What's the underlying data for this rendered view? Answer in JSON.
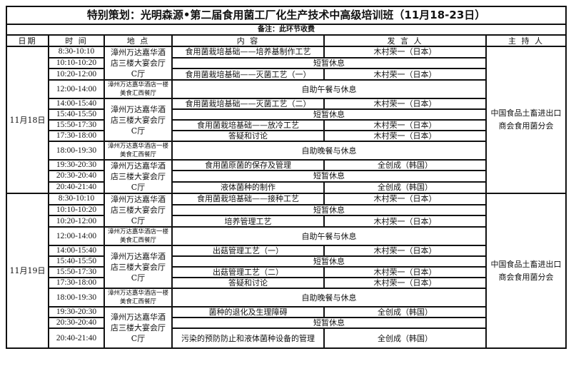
{
  "title": "特别策划：光明森源•第二届食用菌工厂化生产技术中高级培训班（11月18-23日）",
  "note": "备注：此环节收费",
  "headers": [
    "日期",
    "时 间",
    "地 点",
    "内 容",
    "发 言 人",
    "主 持 人"
  ],
  "days": [
    {
      "date": "11月18日",
      "host": "中国食品土畜进出口商会食用菌分会",
      "locations": [
        {
          "text": "漳州万达嘉华酒店三楼大宴会厅C厅",
          "rows": 3
        },
        {
          "text": "漳州万达嘉华酒店一楼美食汇西餐厅",
          "rows": 1
        },
        {
          "text": "漳州万达嘉华酒店三楼大宴会厅C厅",
          "rows": 4
        },
        {
          "text": "漳州万达嘉华酒店一楼美食汇西餐厅",
          "rows": 1
        },
        {
          "text": "漳州万达嘉华酒店三楼大宴会厅C厅",
          "rows": 3
        }
      ],
      "rows": [
        {
          "time": "8:30-10:10",
          "content": "食用菌栽培基础——培养基制作工艺",
          "speaker": "木村荣一（日本）"
        },
        {
          "time": "10:10-10:20",
          "content": "短暂休息"
        },
        {
          "time": "10:20-12:00",
          "content": "食用菌栽培基础——灭菌工艺（一）",
          "speaker": "木村荣一（日本）"
        },
        {
          "time": "12:00-14:00",
          "content": "自助午餐与休息"
        },
        {
          "time": "14:00-15:40",
          "content": "食用菌栽培基础——灭菌工艺（二）",
          "speaker": "木村荣一（日本）"
        },
        {
          "time": "15:40-15:50",
          "content": "短暂休息"
        },
        {
          "time": "15:50-17:30",
          "content": "食用菌栽培基础——放冷工艺",
          "speaker": "木村荣一（日本）"
        },
        {
          "time": "17:30-18:00",
          "content": "答疑和讨论",
          "speaker": "木村荣一（日本）"
        },
        {
          "time": "18:00-19:30",
          "content": "自助晚餐与休息"
        },
        {
          "time": "19:30-20:30",
          "content": "食用菌原菌的保存及管理",
          "speaker": "全创成（韩国）"
        },
        {
          "time": "20:30-20:40",
          "content": "短暂休息"
        },
        {
          "time": "20:40-21:40",
          "content": "液体菌种的制作",
          "speaker": "全创成（韩国）"
        }
      ]
    },
    {
      "date": "11月19日",
      "host": "中国食品土畜进出口商会食用菌分会",
      "locations": [
        {
          "text": "漳州万达嘉华酒店三楼大宴会厅C厅",
          "rows": 3
        },
        {
          "text": "漳州万达嘉华酒店一楼美食汇西餐厅",
          "rows": 1
        },
        {
          "text": "漳州万达嘉华酒店三楼大宴会厅C厅",
          "rows": 4
        },
        {
          "text": "漳州万达嘉华酒店一楼美食汇西餐厅",
          "rows": 1
        },
        {
          "text": "漳州万达嘉华酒店三楼大宴会厅C厅",
          "rows": 3
        }
      ],
      "rows": [
        {
          "time": "8:30-10:10",
          "content": "食用菌栽培基础——接种工艺",
          "speaker": "木村荣一（日本）"
        },
        {
          "time": "10:10-10:20",
          "content": "短暂休息"
        },
        {
          "time": "10:20-12:00",
          "content": "培养管理工艺",
          "speaker": "木村荣一（日本）"
        },
        {
          "time": "12:00-14:00",
          "content": "自助午餐与休息"
        },
        {
          "time": "14:00-15:40",
          "content": "出菇管理工艺（一）",
          "speaker": "木村荣一（日本）"
        },
        {
          "time": "15:40-15:50",
          "content": "短暂休息"
        },
        {
          "time": "15:50-17:30",
          "content": "出菇管理工艺（二）",
          "speaker": "木村荣一（日本）"
        },
        {
          "time": "17:30-18:00",
          "content": "答疑和讨论",
          "speaker": "木村荣一（日本）"
        },
        {
          "time": "18:00-19:30",
          "content": "自助晚餐与休息"
        },
        {
          "time": "19:30-20:30",
          "content": "菌种的退化及生理障碍",
          "speaker": "全创成（韩国）"
        },
        {
          "time": "20:30-20:40",
          "content": "短暂休息"
        },
        {
          "time": "20:40-21:40",
          "content": "污染的预防防止和液体菌种设备的管理",
          "speaker": "全创成（韩国）"
        }
      ]
    }
  ]
}
